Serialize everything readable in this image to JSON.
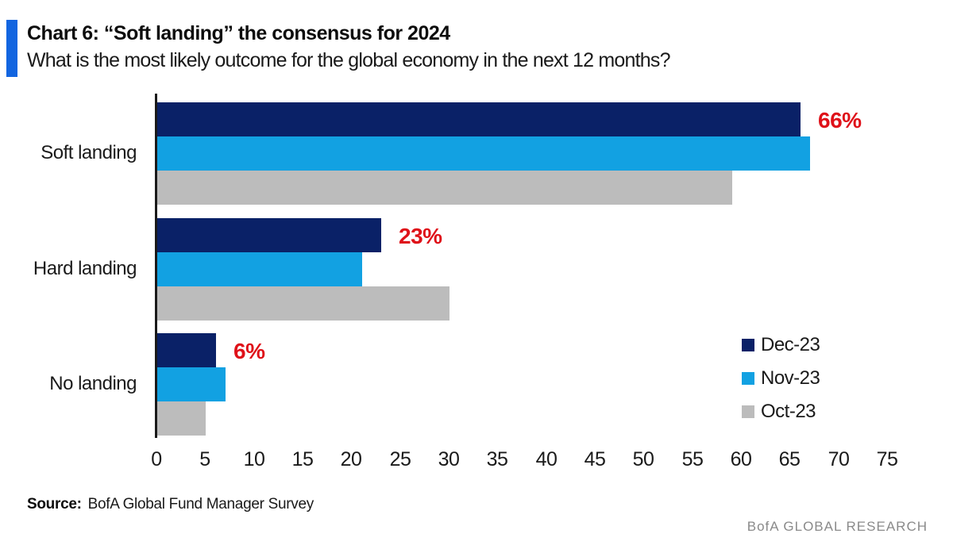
{
  "header": {
    "title": "Chart 6: “Soft landing” the consensus for 2024",
    "subtitle": "What is the most likely outcome for the global economy in the next 12 months?"
  },
  "chart_data": {
    "type": "bar",
    "orientation": "horizontal",
    "title": "Chart 6: “Soft landing” the consensus for 2024",
    "subtitle": "What is the most likely outcome for the global economy in the next 12 months?",
    "categories": [
      "Soft landing",
      "Hard landing",
      "No landing"
    ],
    "series": [
      {
        "name": "Dec-23",
        "color": "#0A2167",
        "values": [
          66,
          23,
          6
        ]
      },
      {
        "name": "Nov-23",
        "color": "#12A1E2",
        "values": [
          67,
          21,
          7
        ]
      },
      {
        "name": "Oct-23",
        "color": "#BCBCBC",
        "values": [
          59,
          30,
          5
        ]
      }
    ],
    "data_labels": [
      "66%",
      "23%",
      "6%"
    ],
    "data_label_series": "Dec-23",
    "data_label_color": "#DF1119",
    "xlim": [
      0,
      75
    ],
    "xticks": [
      0,
      5,
      10,
      15,
      20,
      25,
      30,
      35,
      40,
      45,
      50,
      55,
      60,
      65,
      70,
      75
    ],
    "grid": false,
    "legend_position": "right-middle",
    "axis_color": "#1a1a1a"
  },
  "footer": {
    "source_label": "Source:",
    "source_text": "BofA Global Fund Manager Survey",
    "brand": "BofA GLOBAL RESEARCH"
  },
  "colors": {
    "accent": "#1265E0",
    "navy": "#0A2167",
    "light_blue": "#12A1E2",
    "gray": "#BCBCBC",
    "red": "#DF1119",
    "brand_gray": "#8a8a8a"
  }
}
